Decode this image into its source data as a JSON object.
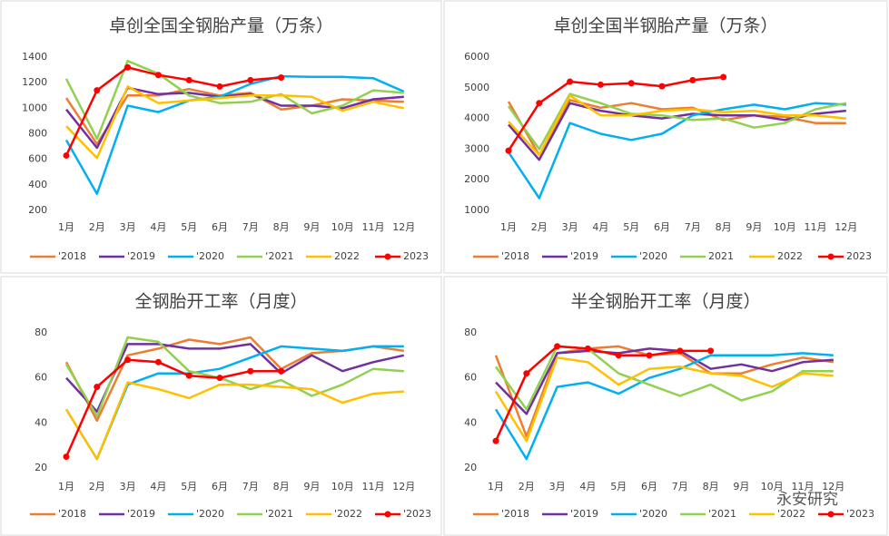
{
  "chart_data": [
    {
      "type": "line",
      "title": "卓创全国全钢胎产量（万条）",
      "categories": [
        "1月",
        "2月",
        "3月",
        "4月",
        "5月",
        "6月",
        "7月",
        "8月",
        "9月",
        "10月",
        "11月",
        "12月"
      ],
      "ylim": [
        200,
        1400
      ],
      "yticks": [
        200,
        400,
        600,
        800,
        1000,
        1200,
        1400
      ],
      "series": [
        {
          "name": "'2018",
          "color": "#ed7d31",
          "values": [
            1080,
            720,
            1100,
            1100,
            1150,
            1100,
            1120,
            990,
            1020,
            1070,
            1060,
            1050
          ]
        },
        {
          "name": "'2019",
          "color": "#7030a0",
          "values": [
            990,
            690,
            1160,
            1110,
            1120,
            1090,
            1110,
            1020,
            1020,
            1000,
            1070,
            1090
          ]
        },
        {
          "name": "'2020",
          "color": "#00b0f0",
          "values": [
            750,
            330,
            1020,
            970,
            1060,
            1090,
            1190,
            1250,
            1245,
            1245,
            1235,
            1130
          ]
        },
        {
          "name": "‘2021",
          "color": "#92d050",
          "values": [
            1230,
            760,
            1370,
            1270,
            1100,
            1040,
            1050,
            1110,
            960,
            1020,
            1140,
            1120
          ]
        },
        {
          "name": "2022",
          "color": "#ffc000",
          "values": [
            860,
            610,
            1170,
            1040,
            1060,
            1080,
            1100,
            1100,
            1090,
            980,
            1050,
            1000
          ]
        },
        {
          "name": "2023",
          "color": "#ff0000",
          "markers": true,
          "values": [
            630,
            1140,
            1320,
            1260,
            1220,
            1170,
            1220,
            1240,
            null,
            null,
            null,
            null
          ]
        }
      ]
    },
    {
      "type": "line",
      "title": "卓创全国半钢胎产量（万条）",
      "categories": [
        "1月",
        "2月",
        "3月",
        "4月",
        "5月",
        "6月",
        "7月",
        "8月",
        "9月",
        "10月",
        "11月",
        "12月"
      ],
      "ylim": [
        1000,
        6000
      ],
      "yticks": [
        1000,
        2000,
        3000,
        4000,
        5000,
        6000
      ],
      "series": [
        {
          "name": "'2018",
          "color": "#ed7d31",
          "values": [
            4550,
            2800,
            4600,
            4350,
            4500,
            4300,
            4350,
            3950,
            4100,
            4050,
            3850,
            3850
          ]
        },
        {
          "name": "'2019",
          "color": "#7030a0",
          "values": [
            3800,
            2650,
            4500,
            4250,
            4100,
            4000,
            4150,
            4100,
            4100,
            3950,
            4150,
            4250
          ]
        },
        {
          "name": "'2020",
          "color": "#00b0f0",
          "values": [
            2900,
            1400,
            3850,
            3500,
            3300,
            3500,
            4100,
            4300,
            4450,
            4300,
            4500,
            4450
          ]
        },
        {
          "name": "2021",
          "color": "#92d050",
          "values": [
            4400,
            3000,
            4800,
            4500,
            4150,
            4100,
            3950,
            4000,
            3700,
            3850,
            4300,
            4500
          ]
        },
        {
          "name": "2022",
          "color": "#ffc000",
          "values": [
            3900,
            2800,
            4750,
            4100,
            4100,
            4250,
            4300,
            4200,
            4250,
            4100,
            4100,
            4000
          ]
        },
        {
          "name": "2023",
          "color": "#ff0000",
          "markers": true,
          "values": [
            2950,
            4500,
            5200,
            5100,
            5150,
            5050,
            5250,
            5350,
            null,
            null,
            null,
            null
          ]
        }
      ]
    },
    {
      "type": "line",
      "title": "全钢胎开工率（月度）",
      "categories": [
        "1月",
        "2月",
        "3月",
        "4月",
        "5月",
        "6月",
        "7月",
        "8月",
        "9月",
        "10月",
        "11月",
        "12月"
      ],
      "ylim": [
        20,
        80
      ],
      "yticks": [
        20,
        40,
        60,
        80
      ],
      "series": [
        {
          "name": "'2018",
          "color": "#ed7d31",
          "values": [
            67,
            41,
            70,
            73,
            77,
            75,
            78,
            64,
            71,
            72,
            74,
            72
          ]
        },
        {
          "name": "'2019",
          "color": "#7030a0",
          "values": [
            60,
            45,
            75,
            75,
            73,
            73,
            75,
            62,
            70,
            63,
            67,
            70
          ]
        },
        {
          "name": "'2020",
          "color": "#00b0f0",
          "values": [
            46,
            24,
            57,
            62,
            62,
            64,
            69,
            74,
            73,
            72,
            74,
            74
          ]
        },
        {
          "name": "'2021",
          "color": "#92d050",
          "values": [
            66,
            43,
            78,
            76,
            63,
            60,
            55,
            59,
            52,
            57,
            64,
            63
          ]
        },
        {
          "name": "'2022",
          "color": "#ffc000",
          "values": [
            46,
            24,
            58,
            55,
            51,
            57,
            57,
            56,
            55,
            49,
            53,
            54
          ]
        },
        {
          "name": "'2023",
          "color": "#ff0000",
          "markers": true,
          "values": [
            25,
            56,
            68,
            67,
            61,
            60,
            63,
            63,
            null,
            null,
            null,
            null
          ]
        }
      ]
    },
    {
      "type": "line",
      "title": "半全钢胎开工率（月度）",
      "categories": [
        "1月",
        "2月",
        "3月",
        "4月",
        "5月",
        "6月",
        "7月",
        "8月",
        "9月",
        "10月",
        "11月",
        "12月"
      ],
      "ylim": [
        20,
        80
      ],
      "yticks": [
        20,
        40,
        60,
        80
      ],
      "series": [
        {
          "name": "'2018",
          "color": "#ed7d31",
          "values": [
            70,
            34,
            71,
            73,
            74,
            70,
            71,
            62,
            62,
            66,
            69,
            67
          ]
        },
        {
          "name": "'2019",
          "color": "#7030a0",
          "values": [
            58,
            44,
            71,
            72,
            71,
            73,
            72,
            64,
            66,
            63,
            67,
            68
          ]
        },
        {
          "name": "'2020",
          "color": "#00b0f0",
          "values": [
            46,
            24,
            56,
            58,
            53,
            60,
            64,
            70,
            70,
            70,
            71,
            70
          ]
        },
        {
          "name": "'2021",
          "color": "#92d050",
          "values": [
            65,
            46,
            74,
            73,
            62,
            57,
            52,
            57,
            50,
            54,
            63,
            63
          ]
        },
        {
          "name": "'2022",
          "color": "#ffc000",
          "values": [
            54,
            32,
            69,
            67,
            57,
            64,
            65,
            62,
            61,
            56,
            62,
            61
          ]
        },
        {
          "name": "'2023",
          "color": "#ff0000",
          "markers": true,
          "values": [
            32,
            62,
            74,
            73,
            70,
            70,
            72,
            72,
            null,
            null,
            null,
            null
          ]
        }
      ]
    }
  ],
  "watermark": "永安研究"
}
